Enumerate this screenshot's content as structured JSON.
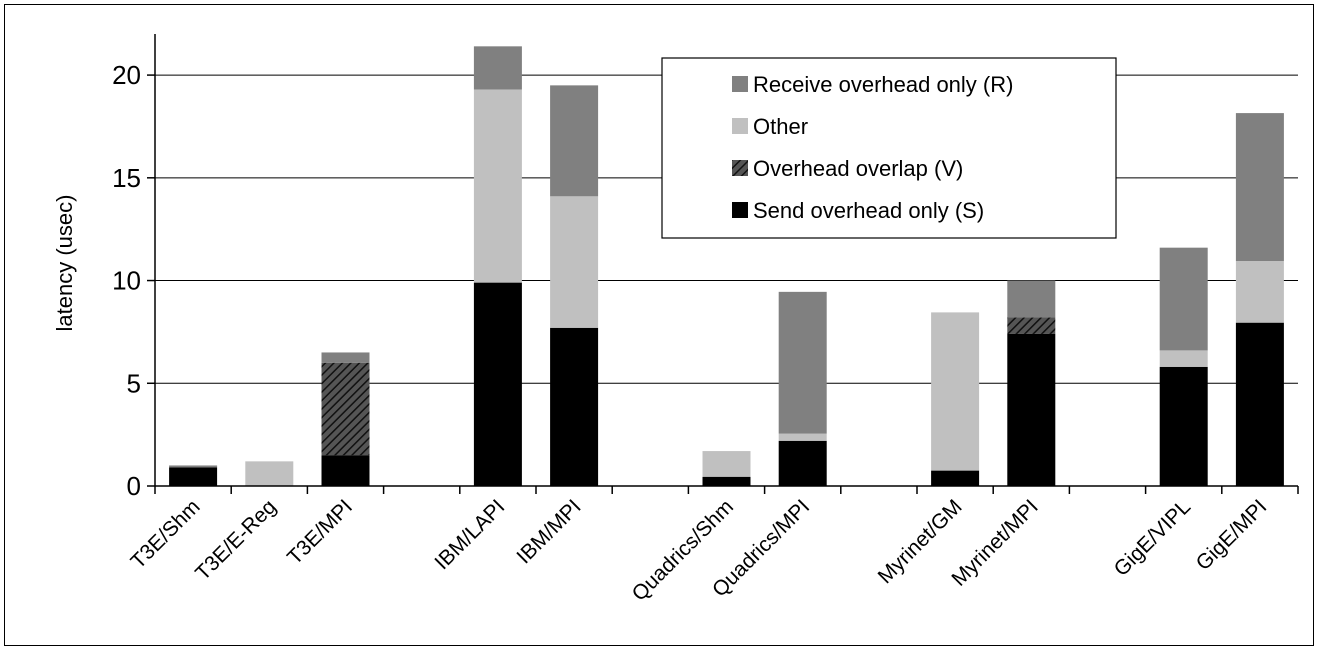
{
  "chart_data": {
    "type": "bar",
    "stacked": true,
    "ylabel": "latency (usec)",
    "xlabel": "",
    "ylim": [
      0,
      22
    ],
    "yticks": [
      0,
      5,
      10,
      15,
      20
    ],
    "grid": true,
    "legend_position": "top-right",
    "categories": [
      "T3E/Shm",
      "T3E/E-Reg",
      "T3E/MPI",
      "IBM/LAPI",
      "IBM/MPI",
      "Quadrics/Shm",
      "Quadrics/MPI",
      "Myrinet/GM",
      "Myrinet/MPI",
      "GigE/VIPL",
      "GigE/MPI"
    ],
    "series": [
      {
        "name": "Send overhead only (S)",
        "color": "#000000",
        "pattern": "solid",
        "values": [
          0.9,
          0.0,
          1.5,
          9.9,
          7.7,
          0.45,
          2.2,
          0.75,
          7.4,
          5.8,
          7.95
        ]
      },
      {
        "name": "Overhead overlap (V)",
        "color": "#555555",
        "pattern": "hatch",
        "values": [
          0.0,
          0.0,
          4.5,
          0.0,
          0.0,
          0.0,
          0.0,
          0.0,
          0.8,
          0.0,
          0.0
        ]
      },
      {
        "name": "Other",
        "color": "#c0c0c0",
        "pattern": "solid",
        "values": [
          0.0,
          1.2,
          0.0,
          9.4,
          6.4,
          1.25,
          0.35,
          7.7,
          0.0,
          0.8,
          3.0
        ]
      },
      {
        "name": "Receive overhead only (R)",
        "color": "#808080",
        "pattern": "solid",
        "values": [
          0.1,
          0.0,
          0.5,
          2.1,
          5.4,
          0.0,
          6.9,
          0.0,
          1.8,
          5.0,
          7.2
        ]
      }
    ],
    "legend_order": [
      "Receive overhead only (R)",
      "Other",
      "Overhead overlap (V)",
      "Send overhead only (S)"
    ]
  }
}
